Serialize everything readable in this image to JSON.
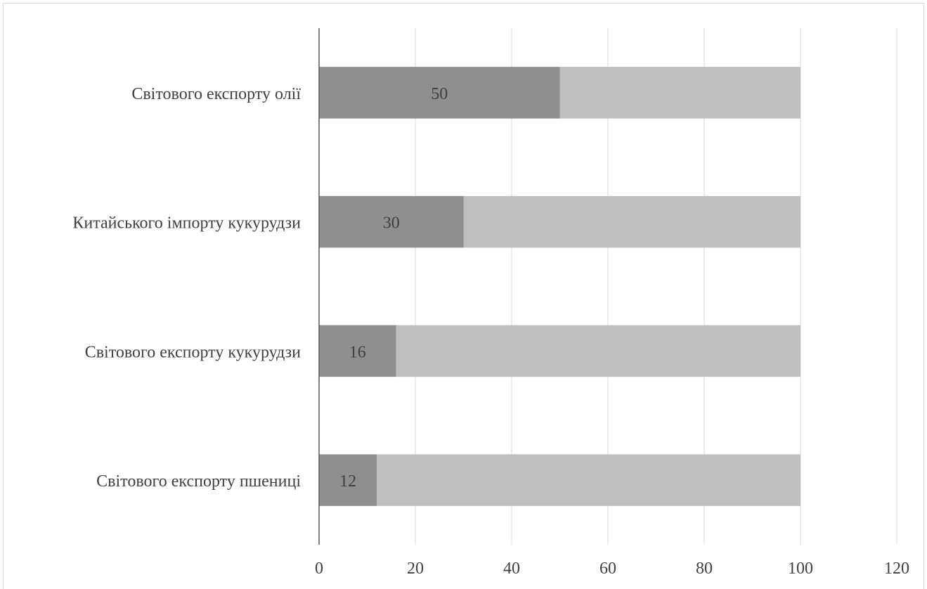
{
  "chart_data": {
    "type": "bar",
    "orientation": "horizontal",
    "stacked": true,
    "categories": [
      "Світового експорту пшениці",
      "Світового експорту кукурудзи",
      "Китайського імпорту кукурудзи",
      "Світового експорту олії"
    ],
    "series": [
      {
        "values": [
          12,
          16,
          30,
          50
        ],
        "color": "#8f8f8f",
        "show_labels": true
      },
      {
        "values": [
          88,
          84,
          70,
          50
        ],
        "color": "#bfbfbf",
        "show_labels": false
      }
    ],
    "x_ticks": [
      "0",
      "20",
      "40",
      "60",
      "80",
      "100",
      "120"
    ],
    "xlim": [
      0,
      120
    ],
    "grid": "vertical",
    "legend": "none",
    "title": "",
    "xlabel": "",
    "ylabel": ""
  }
}
